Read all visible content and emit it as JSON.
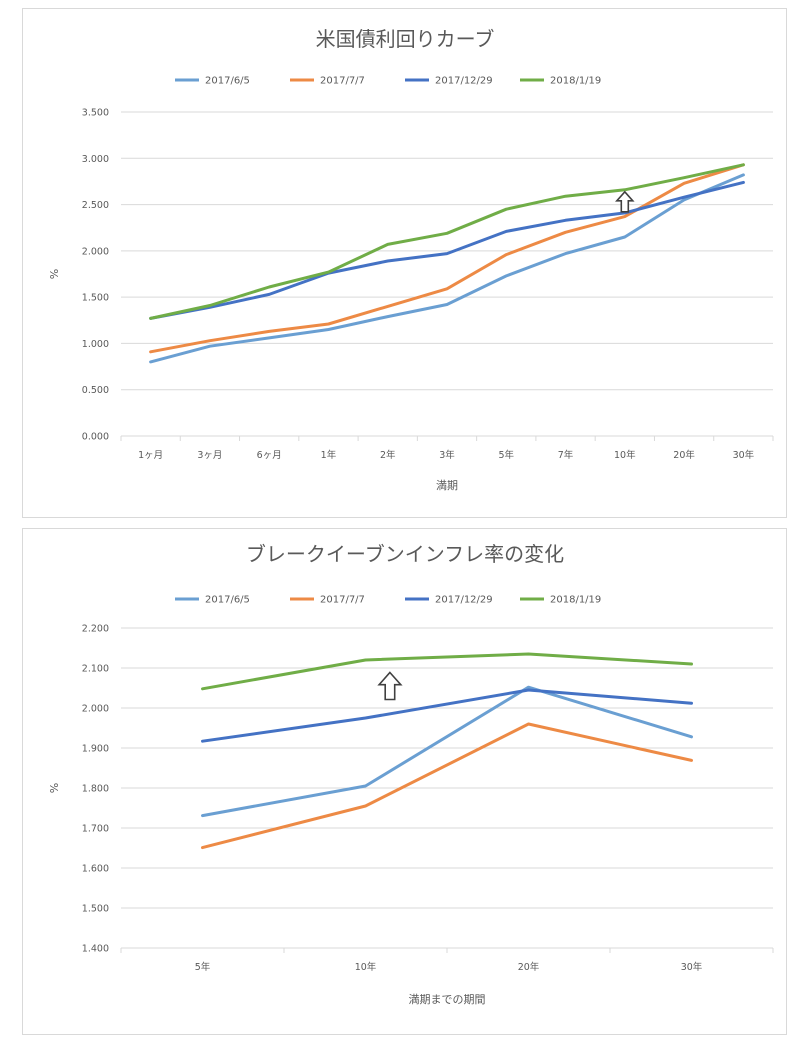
{
  "chart_data": [
    {
      "type": "line",
      "title": "米国債利回りカーブ",
      "xlabel": "満期",
      "ylabel": "%",
      "ylim": [
        0,
        3.5
      ],
      "ytick_labels": [
        "0.000",
        "0.500",
        "1.000",
        "1.500",
        "2.000",
        "2.500",
        "3.000",
        "3.500"
      ],
      "yticks": [
        0,
        0.5,
        1.0,
        1.5,
        2.0,
        2.5,
        3.0,
        3.5
      ],
      "categories": [
        "1ヶ月",
        "3ヶ月",
        "6ヶ月",
        "1年",
        "2年",
        "3年",
        "5年",
        "7年",
        "10年",
        "20年",
        "30年"
      ],
      "legend_position": "top",
      "series": [
        {
          "name": "2017/6/5",
          "color": "#6a9fd2",
          "values": [
            0.8,
            0.97,
            1.06,
            1.15,
            1.29,
            1.42,
            1.73,
            1.97,
            2.15,
            2.55,
            2.82
          ]
        },
        {
          "name": "2017/7/7",
          "color": "#ed8a45",
          "values": [
            0.91,
            1.03,
            1.13,
            1.21,
            1.4,
            1.59,
            1.96,
            2.2,
            2.37,
            2.73,
            2.93
          ]
        },
        {
          "name": "2017/12/29",
          "color": "#4472c4",
          "values": [
            1.27,
            1.39,
            1.53,
            1.76,
            1.89,
            1.97,
            2.21,
            2.33,
            2.41,
            2.58,
            2.74
          ]
        },
        {
          "name": "2018/1/19",
          "color": "#70ad47",
          "values": [
            1.27,
            1.41,
            1.61,
            1.77,
            2.07,
            2.19,
            2.45,
            2.59,
            2.66,
            2.79,
            2.93
          ]
        }
      ],
      "annotation": {
        "symbol": "up-arrow",
        "category_index": 8,
        "value": 2.53
      }
    },
    {
      "type": "line",
      "title": "ブレークイーブンインフレ率の変化",
      "xlabel": "満期までの期間",
      "ylabel": "%",
      "ylim": [
        1.4,
        2.2
      ],
      "ytick_labels": [
        "1.400",
        "1.500",
        "1.600",
        "1.700",
        "1.800",
        "1.900",
        "2.000",
        "2.100",
        "2.200"
      ],
      "yticks": [
        1.4,
        1.5,
        1.6,
        1.7,
        1.8,
        1.9,
        2.0,
        2.1,
        2.2
      ],
      "categories": [
        "5年",
        "10年",
        "20年",
        "30年"
      ],
      "legend_position": "top",
      "series": [
        {
          "name": "2017/6/5",
          "color": "#6a9fd2",
          "values": [
            1.731,
            1.805,
            2.052,
            1.928
          ]
        },
        {
          "name": "2017/7/7",
          "color": "#ed8a45",
          "values": [
            1.651,
            1.755,
            1.96,
            1.869
          ]
        },
        {
          "name": "2017/12/29",
          "color": "#4472c4",
          "values": [
            1.917,
            1.975,
            2.045,
            2.012
          ]
        },
        {
          "name": "2018/1/19",
          "color": "#70ad47",
          "values": [
            2.048,
            2.12,
            2.135,
            2.11
          ]
        }
      ],
      "annotation": {
        "symbol": "up-arrow",
        "category_index": 1.15,
        "value": 2.055
      }
    }
  ]
}
